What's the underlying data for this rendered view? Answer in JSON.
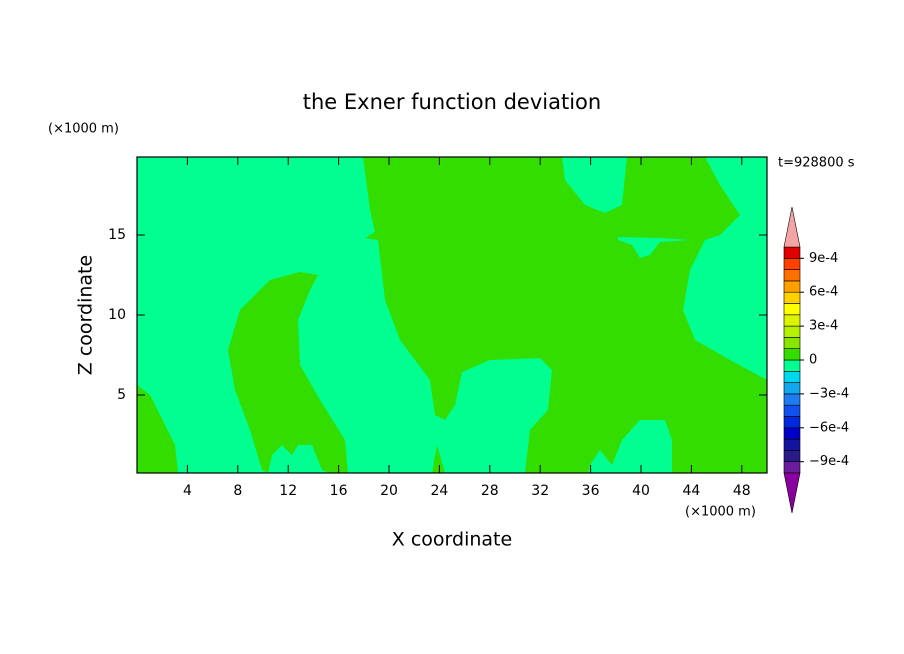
{
  "chart_data": {
    "type": "contour",
    "title": "the Exner function deviation",
    "x_label": "X coordinate",
    "y_label": "Z coordinate",
    "x_unit": "(×1000 m)",
    "y_unit": "(×1000 m)",
    "annotation": "t=928800 s",
    "xlim": [
      0,
      50
    ],
    "xticks": [
      4,
      8,
      12,
      16,
      20,
      24,
      28,
      32,
      36,
      40,
      44,
      48
    ],
    "ylim": [
      0,
      20
    ],
    "yticks": [
      5,
      10,
      15
    ],
    "levels": [
      -0.001,
      -0.0009,
      -0.0008,
      -0.0007,
      -0.0006,
      -0.0005,
      -0.0004,
      -0.0003,
      -0.0002,
      -0.0001,
      0,
      0.0001,
      0.0002,
      0.0003,
      0.0004,
      0.0005,
      0.0006,
      0.0007,
      0.0008,
      0.0009,
      0.001
    ],
    "colors": [
      "#6a1e9c",
      "#2a1a8a",
      "#14149e",
      "#0000c8",
      "#0028e0",
      "#1052f0",
      "#1e7cf0",
      "#12a8f0",
      "#00d8f0",
      "#00ff90",
      "#33dd00",
      "#88e400",
      "#b4f000",
      "#dcf400",
      "#ffff00",
      "#ffd000",
      "#ffa000",
      "#ff7000",
      "#ff4000",
      "#e00000"
    ],
    "under_color": "#8a00a0",
    "over_color": "#f4a4a4",
    "colorbar_ticks": [
      {
        "value": -0.0009,
        "label": "−9e-4"
      },
      {
        "value": -0.0006,
        "label": "−6e-4"
      },
      {
        "value": -0.0003,
        "label": "−3e-4"
      },
      0,
      {
        "value": 0.0003,
        "label": "3e-4"
      },
      {
        "value": 0.0006,
        "label": "6e-4"
      },
      {
        "value": 0.0009,
        "label": "9e-4"
      }
    ]
  }
}
